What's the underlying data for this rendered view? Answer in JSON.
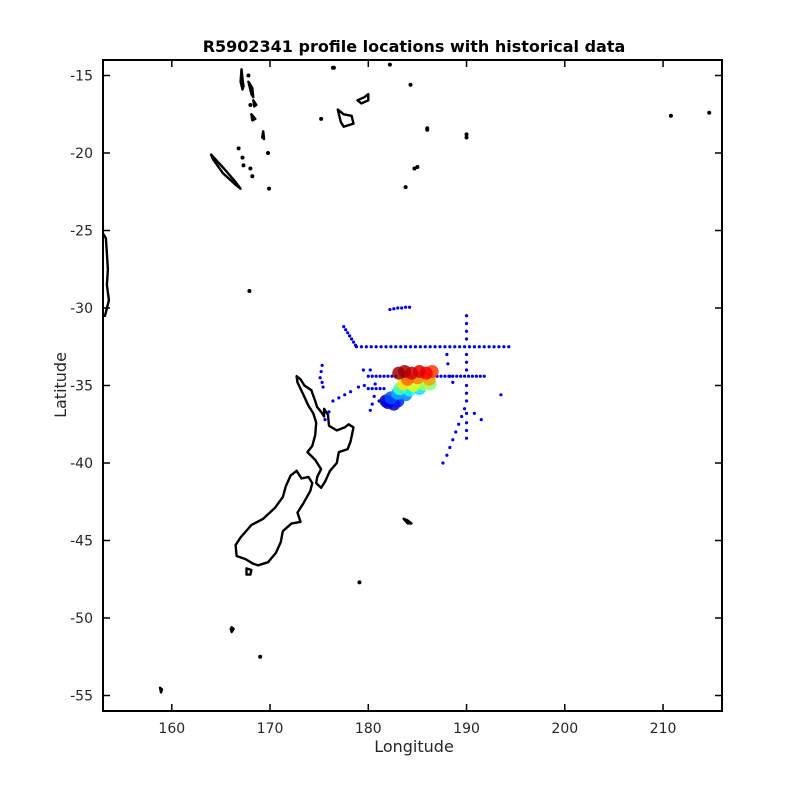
{
  "chart_data": {
    "type": "scatter",
    "title": "R5902341 profile locations with historical data",
    "xlabel": "Longitude",
    "ylabel": "Latitude",
    "xlim": [
      153,
      216
    ],
    "ylim": [
      -56,
      -14
    ],
    "xticks": [
      160,
      170,
      180,
      190,
      200,
      210
    ],
    "yticks": [
      -15,
      -20,
      -25,
      -30,
      -35,
      -40,
      -45,
      -50,
      -55
    ],
    "grid": false,
    "colors": {
      "historical": "#0000ff",
      "coastline": "#000000",
      "frame": "#000000"
    },
    "historical_points": [
      [
        177.5,
        -31.2
      ],
      [
        177.7,
        -31.4
      ],
      [
        177.9,
        -31.6
      ],
      [
        178.1,
        -31.8
      ],
      [
        178.3,
        -32.0
      ],
      [
        178.5,
        -32.2
      ],
      [
        178.7,
        -32.4
      ],
      [
        178.8,
        -32.5
      ],
      [
        179.3,
        -32.5
      ],
      [
        179.8,
        -32.5
      ],
      [
        180.3,
        -32.5
      ],
      [
        180.8,
        -32.5
      ],
      [
        181.3,
        -32.5
      ],
      [
        181.8,
        -32.5
      ],
      [
        182.3,
        -32.5
      ],
      [
        182.8,
        -32.5
      ],
      [
        183.3,
        -32.5
      ],
      [
        183.8,
        -32.5
      ],
      [
        184.3,
        -32.5
      ],
      [
        184.8,
        -32.5
      ],
      [
        185.3,
        -32.5
      ],
      [
        185.8,
        -32.5
      ],
      [
        186.3,
        -32.5
      ],
      [
        186.8,
        -32.5
      ],
      [
        187.3,
        -32.5
      ],
      [
        187.8,
        -32.5
      ],
      [
        188.3,
        -32.5
      ],
      [
        188.8,
        -32.5
      ],
      [
        189.3,
        -32.5
      ],
      [
        189.8,
        -32.5
      ],
      [
        190.3,
        -32.5
      ],
      [
        190.8,
        -32.5
      ],
      [
        191.3,
        -32.5
      ],
      [
        191.8,
        -32.5
      ],
      [
        192.3,
        -32.5
      ],
      [
        192.8,
        -32.5
      ],
      [
        193.3,
        -32.5
      ],
      [
        193.8,
        -32.5
      ],
      [
        194.3,
        -32.5
      ],
      [
        182.2,
        -30.1
      ],
      [
        182.6,
        -30.05
      ],
      [
        183.0,
        -30.0
      ],
      [
        183.4,
        -30.0
      ],
      [
        183.8,
        -29.95
      ],
      [
        184.2,
        -29.95
      ],
      [
        190.0,
        -30.5
      ],
      [
        190.0,
        -31.0
      ],
      [
        190.0,
        -31.5
      ],
      [
        190.0,
        -32.0
      ],
      [
        190.0,
        -33.0
      ],
      [
        190.0,
        -33.5
      ],
      [
        190.0,
        -34.0
      ],
      [
        190.0,
        -35.0
      ],
      [
        190.0,
        -35.5
      ],
      [
        190.0,
        -36.0
      ],
      [
        188.0,
        -33.0
      ],
      [
        188.1,
        -33.6
      ],
      [
        188.3,
        -34.4
      ],
      [
        188.6,
        -34.8
      ],
      [
        180.0,
        -34.4
      ],
      [
        180.4,
        -34.4
      ],
      [
        180.8,
        -34.4
      ],
      [
        181.2,
        -34.4
      ],
      [
        181.6,
        -34.4
      ],
      [
        182.0,
        -34.4
      ],
      [
        182.4,
        -34.4
      ],
      [
        182.8,
        -34.4
      ],
      [
        187.0,
        -34.4
      ],
      [
        187.4,
        -34.4
      ],
      [
        187.8,
        -34.4
      ],
      [
        188.2,
        -34.4
      ],
      [
        188.6,
        -34.4
      ],
      [
        189.0,
        -34.4
      ],
      [
        189.4,
        -34.4
      ],
      [
        189.8,
        -34.4
      ],
      [
        190.2,
        -34.4
      ],
      [
        190.6,
        -34.4
      ],
      [
        191.0,
        -34.4
      ],
      [
        191.4,
        -34.4
      ],
      [
        191.8,
        -34.4
      ],
      [
        180.0,
        -35.2
      ],
      [
        180.4,
        -35.2
      ],
      [
        180.8,
        -35.2
      ],
      [
        181.2,
        -35.2
      ],
      [
        181.6,
        -35.2
      ],
      [
        180.6,
        -35.7
      ],
      [
        180.4,
        -36.2
      ],
      [
        180.2,
        -36.6
      ],
      [
        178.2,
        -35.4
      ],
      [
        177.6,
        -35.6
      ],
      [
        177.0,
        -35.8
      ],
      [
        176.4,
        -36.0
      ],
      [
        179.0,
        -35.1
      ],
      [
        179.6,
        -35.0
      ],
      [
        175.3,
        -33.7
      ],
      [
        175.2,
        -34.1
      ],
      [
        175.1,
        -34.5
      ],
      [
        175.3,
        -34.8
      ],
      [
        175.4,
        -35.1
      ],
      [
        189.8,
        -36.5
      ],
      [
        189.5,
        -37.0
      ],
      [
        189.2,
        -37.5
      ],
      [
        188.9,
        -38.0
      ],
      [
        188.6,
        -38.5
      ],
      [
        188.3,
        -39.0
      ],
      [
        188.0,
        -39.5
      ],
      [
        187.6,
        -40.0
      ],
      [
        190.0,
        -36.8
      ],
      [
        190.0,
        -37.4
      ],
      [
        190.0,
        -37.9
      ],
      [
        190.0,
        -38.4
      ],
      [
        190.8,
        -36.8
      ],
      [
        191.5,
        -37.2
      ],
      [
        193.5,
        -35.6
      ],
      [
        175.6,
        -37.2
      ],
      [
        176.0,
        -36.7
      ],
      [
        179.5,
        -34.0
      ],
      [
        180.2,
        -34.0
      ],
      [
        180.7,
        -34.9
      ],
      [
        181.1,
        -36.0
      ],
      [
        181.7,
        -36.1
      ],
      [
        182.2,
        -36.2
      ]
    ],
    "current_points": [
      [
        183.1,
        -34.2,
        0.97
      ],
      [
        183.7,
        -34.1,
        0.95
      ],
      [
        184.4,
        -34.2,
        0.92
      ],
      [
        185.2,
        -34.1,
        0.9
      ],
      [
        185.9,
        -34.2,
        0.88
      ],
      [
        186.5,
        -34.1,
        0.82
      ],
      [
        184.0,
        -34.6,
        0.78
      ],
      [
        185.0,
        -34.5,
        0.75
      ],
      [
        186.2,
        -34.6,
        0.72
      ],
      [
        183.6,
        -34.9,
        0.65
      ],
      [
        184.6,
        -35.0,
        0.6
      ],
      [
        185.6,
        -34.9,
        0.55
      ],
      [
        186.3,
        -34.9,
        0.5
      ],
      [
        183.2,
        -35.2,
        0.45
      ],
      [
        184.2,
        -35.3,
        0.4
      ],
      [
        185.2,
        -35.2,
        0.35
      ],
      [
        183.0,
        -35.5,
        0.3
      ],
      [
        183.8,
        -35.6,
        0.25
      ],
      [
        182.3,
        -35.8,
        0.2
      ],
      [
        183.0,
        -36.0,
        0.15
      ],
      [
        182.0,
        -36.1,
        0.1
      ],
      [
        182.6,
        -36.2,
        0.05
      ],
      [
        181.8,
        -36.0,
        0.02
      ]
    ],
    "coastlines": [
      [
        [
          172.7,
          -34.4
        ],
        [
          173.1,
          -34.6
        ],
        [
          173.5,
          -35.0
        ],
        [
          174.2,
          -35.3
        ],
        [
          174.6,
          -36.0
        ],
        [
          174.8,
          -36.4
        ],
        [
          175.2,
          -36.7
        ],
        [
          175.5,
          -37.0
        ],
        [
          175.5,
          -36.5
        ],
        [
          175.9,
          -36.9
        ],
        [
          176.0,
          -37.6
        ],
        [
          176.8,
          -37.9
        ],
        [
          177.6,
          -37.7
        ],
        [
          178.0,
          -37.5
        ],
        [
          178.5,
          -37.7
        ],
        [
          178.2,
          -38.6
        ],
        [
          177.9,
          -39.1
        ],
        [
          177.0,
          -39.3
        ],
        [
          176.8,
          -40.0
        ],
        [
          176.1,
          -40.5
        ],
        [
          175.6,
          -41.2
        ],
        [
          175.2,
          -41.6
        ],
        [
          174.7,
          -41.3
        ],
        [
          174.8,
          -40.9
        ],
        [
          175.2,
          -40.4
        ],
        [
          174.6,
          -39.8
        ],
        [
          173.8,
          -39.3
        ],
        [
          174.3,
          -38.9
        ],
        [
          174.6,
          -38.2
        ],
        [
          174.7,
          -37.4
        ],
        [
          174.4,
          -36.8
        ],
        [
          173.9,
          -36.3
        ],
        [
          173.4,
          -35.6
        ],
        [
          172.8,
          -34.8
        ],
        [
          172.7,
          -34.4
        ]
      ],
      [
        [
          172.7,
          -40.5
        ],
        [
          173.2,
          -41.0
        ],
        [
          173.9,
          -40.9
        ],
        [
          174.3,
          -41.3
        ],
        [
          174.1,
          -41.8
        ],
        [
          173.4,
          -42.6
        ],
        [
          172.8,
          -43.2
        ],
        [
          173.1,
          -43.8
        ],
        [
          172.2,
          -43.9
        ],
        [
          171.3,
          -44.4
        ],
        [
          171.1,
          -45.1
        ],
        [
          170.6,
          -45.8
        ],
        [
          169.8,
          -46.4
        ],
        [
          168.8,
          -46.6
        ],
        [
          168.3,
          -46.5
        ],
        [
          167.5,
          -46.2
        ],
        [
          166.6,
          -46.0
        ],
        [
          166.5,
          -45.3
        ],
        [
          167.0,
          -44.8
        ],
        [
          168.1,
          -44.0
        ],
        [
          169.3,
          -43.6
        ],
        [
          170.5,
          -42.9
        ],
        [
          171.3,
          -42.2
        ],
        [
          171.6,
          -41.5
        ],
        [
          172.1,
          -40.8
        ],
        [
          172.7,
          -40.5
        ]
      ],
      [
        [
          167.6,
          -46.8
        ],
        [
          168.1,
          -46.9
        ],
        [
          168.0,
          -47.2
        ],
        [
          167.6,
          -47.2
        ],
        [
          167.6,
          -46.8
        ]
      ],
      [
        [
          164.0,
          -20.1
        ],
        [
          165.3,
          -21.0
        ],
        [
          166.4,
          -21.8
        ],
        [
          167.0,
          -22.3
        ],
        [
          166.6,
          -22.1
        ],
        [
          165.2,
          -21.3
        ],
        [
          164.2,
          -20.4
        ],
        [
          164.0,
          -20.1
        ]
      ],
      [
        [
          176.9,
          -17.2
        ],
        [
          177.5,
          -17.5
        ],
        [
          178.3,
          -17.6
        ],
        [
          178.5,
          -18.1
        ],
        [
          177.5,
          -18.3
        ],
        [
          177.2,
          -18.0
        ],
        [
          176.9,
          -17.2
        ]
      ],
      [
        [
          178.9,
          -16.6
        ],
        [
          179.6,
          -16.4
        ],
        [
          180.0,
          -16.2
        ],
        [
          180.0,
          -16.6
        ],
        [
          179.3,
          -16.8
        ],
        [
          178.9,
          -16.6
        ]
      ],
      [
        [
          153.0,
          -25.2
        ],
        [
          153.3,
          -25.5
        ],
        [
          153.4,
          -26.5
        ],
        [
          153.5,
          -27.5
        ],
        [
          153.4,
          -28.5
        ],
        [
          153.6,
          -29.5
        ],
        [
          153.2,
          -30.5
        ],
        [
          153.0,
          -30.5
        ]
      ],
      [
        [
          183.6,
          -43.6
        ],
        [
          184.0,
          -43.7
        ],
        [
          184.4,
          -43.9
        ],
        [
          184.0,
          -43.9
        ],
        [
          183.6,
          -43.6
        ]
      ],
      [
        [
          166.1,
          -50.6
        ],
        [
          166.3,
          -50.7
        ],
        [
          166.1,
          -50.9
        ],
        [
          166.0,
          -50.7
        ],
        [
          166.1,
          -50.6
        ]
      ],
      [
        [
          167.1,
          -14.6
        ],
        [
          167.2,
          -15.2
        ],
        [
          167.3,
          -15.7
        ],
        [
          167.2,
          -15.9
        ],
        [
          167.0,
          -15.4
        ],
        [
          167.1,
          -14.6
        ]
      ],
      [
        [
          167.8,
          -15.4
        ],
        [
          168.2,
          -15.8
        ],
        [
          168.3,
          -16.4
        ],
        [
          168.1,
          -16.2
        ],
        [
          167.8,
          -15.4
        ]
      ],
      [
        [
          168.3,
          -16.6
        ],
        [
          168.6,
          -16.9
        ],
        [
          168.4,
          -17.0
        ],
        [
          168.3,
          -16.6
        ]
      ],
      [
        [
          169.3,
          -18.6
        ],
        [
          169.4,
          -19.1
        ],
        [
          169.2,
          -19.0
        ],
        [
          169.3,
          -18.6
        ]
      ],
      [
        [
          168.1,
          -17.5
        ],
        [
          168.5,
          -17.8
        ],
        [
          168.2,
          -17.9
        ],
        [
          168.1,
          -17.5
        ]
      ],
      [
        [
          158.8,
          -54.5
        ],
        [
          159.0,
          -54.6
        ],
        [
          158.9,
          -54.8
        ],
        [
          158.8,
          -54.5
        ]
      ]
    ],
    "islets": [
      [
        169.0,
        -52.5
      ],
      [
        179.1,
        -47.7
      ],
      [
        167.9,
        -28.9
      ],
      [
        169.9,
        -22.3
      ],
      [
        168.2,
        -21.5
      ],
      [
        167.3,
        -20.8
      ],
      [
        168.0,
        -21.0
      ],
      [
        167.2,
        -20.3
      ],
      [
        169.8,
        -20.0
      ],
      [
        175.2,
        -17.8
      ],
      [
        176.5,
        -14.5
      ],
      [
        186.0,
        -18.5
      ],
      [
        190.0,
        -18.8
      ],
      [
        185.0,
        -20.9
      ],
      [
        184.7,
        -21.0
      ],
      [
        183.8,
        -22.2
      ],
      [
        184.3,
        -15.6
      ],
      [
        190.0,
        -19.0
      ],
      [
        210.8,
        -17.6
      ],
      [
        214.7,
        -17.4
      ],
      [
        186.0,
        -18.4
      ],
      [
        182.2,
        -14.3
      ],
      [
        176.4,
        -14.5
      ],
      [
        167.8,
        -15.0
      ],
      [
        166.8,
        -19.7
      ],
      [
        168.0,
        -16.9
      ]
    ]
  }
}
